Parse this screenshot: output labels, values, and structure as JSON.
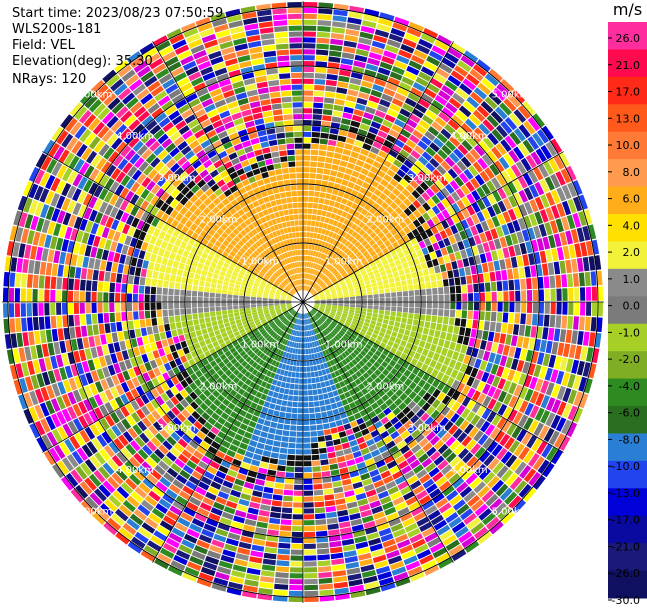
{
  "header": {
    "start_time": "Start time: 2023/08/23 07:50:59",
    "instrument": "WLS200s-181",
    "field": "Field: VEL",
    "elevation": "Elevation(deg): 35.30",
    "nrays": "NRays: 120"
  },
  "chart_data": {
    "type": "heatmap",
    "projection": "polar-ppi",
    "field": "VEL",
    "units": "m/s",
    "range_rings_km": [
      1.0,
      2.0,
      3.0,
      4.0,
      5.0
    ],
    "ring_labels": [
      "1.00km",
      "2.00km",
      "3.00km",
      "4.00km",
      "5.00km"
    ],
    "nrays": 120,
    "spokes_deg": [
      0,
      30,
      60,
      90,
      120,
      150,
      180,
      210,
      240,
      270,
      300,
      330
    ],
    "colorbar": {
      "label": "m/s",
      "ticks": [
        "26.0",
        "21.0",
        "17.0",
        "13.0",
        "10.0",
        "8.0",
        "6.0",
        "4.0",
        "2.0",
        "1.0",
        "0.0",
        "-1.0",
        "-2.0",
        "-4.0",
        "-6.0",
        "-8.0",
        "-10.0",
        "-13.0",
        "-17.0",
        "-21.0",
        "-26.0",
        "-30.0"
      ],
      "colors": [
        "#ff2d9e",
        "#ff0a4e",
        "#ff2a18",
        "#ff5a1c",
        "#ff7a34",
        "#ff9a4e",
        "#ffae1a",
        "#ffe000",
        "#f2f23a",
        "#8a8a8a",
        "#7b7b7b",
        "#a6d025",
        "#7fae24",
        "#2e8b22",
        "#2a6e1f",
        "#2a7fd4",
        "#2244ee",
        "#0000d8",
        "#0a0aa0",
        "#1a1a7a",
        "#101060"
      ]
    },
    "sector_pattern": [
      {
        "from_deg": 300,
        "to_deg": 60,
        "color": "#ffae1a"
      },
      {
        "from_deg": 60,
        "to_deg": 85,
        "color": "#f2f23a"
      },
      {
        "from_deg": 85,
        "to_deg": 95,
        "color": "#8a8a8a"
      },
      {
        "from_deg": 95,
        "to_deg": 120,
        "color": "#a6d025"
      },
      {
        "from_deg": 120,
        "to_deg": 160,
        "color": "#2e8b22"
      },
      {
        "from_deg": 160,
        "to_deg": 200,
        "color": "#2a7fd4"
      },
      {
        "from_deg": 200,
        "to_deg": 240,
        "color": "#2e8b22"
      },
      {
        "from_deg": 240,
        "to_deg": 265,
        "color": "#a6d025"
      },
      {
        "from_deg": 265,
        "to_deg": 275,
        "color": "#8a8a8a"
      },
      {
        "from_deg": 275,
        "to_deg": 300,
        "color": "#f2f23a"
      }
    ]
  }
}
